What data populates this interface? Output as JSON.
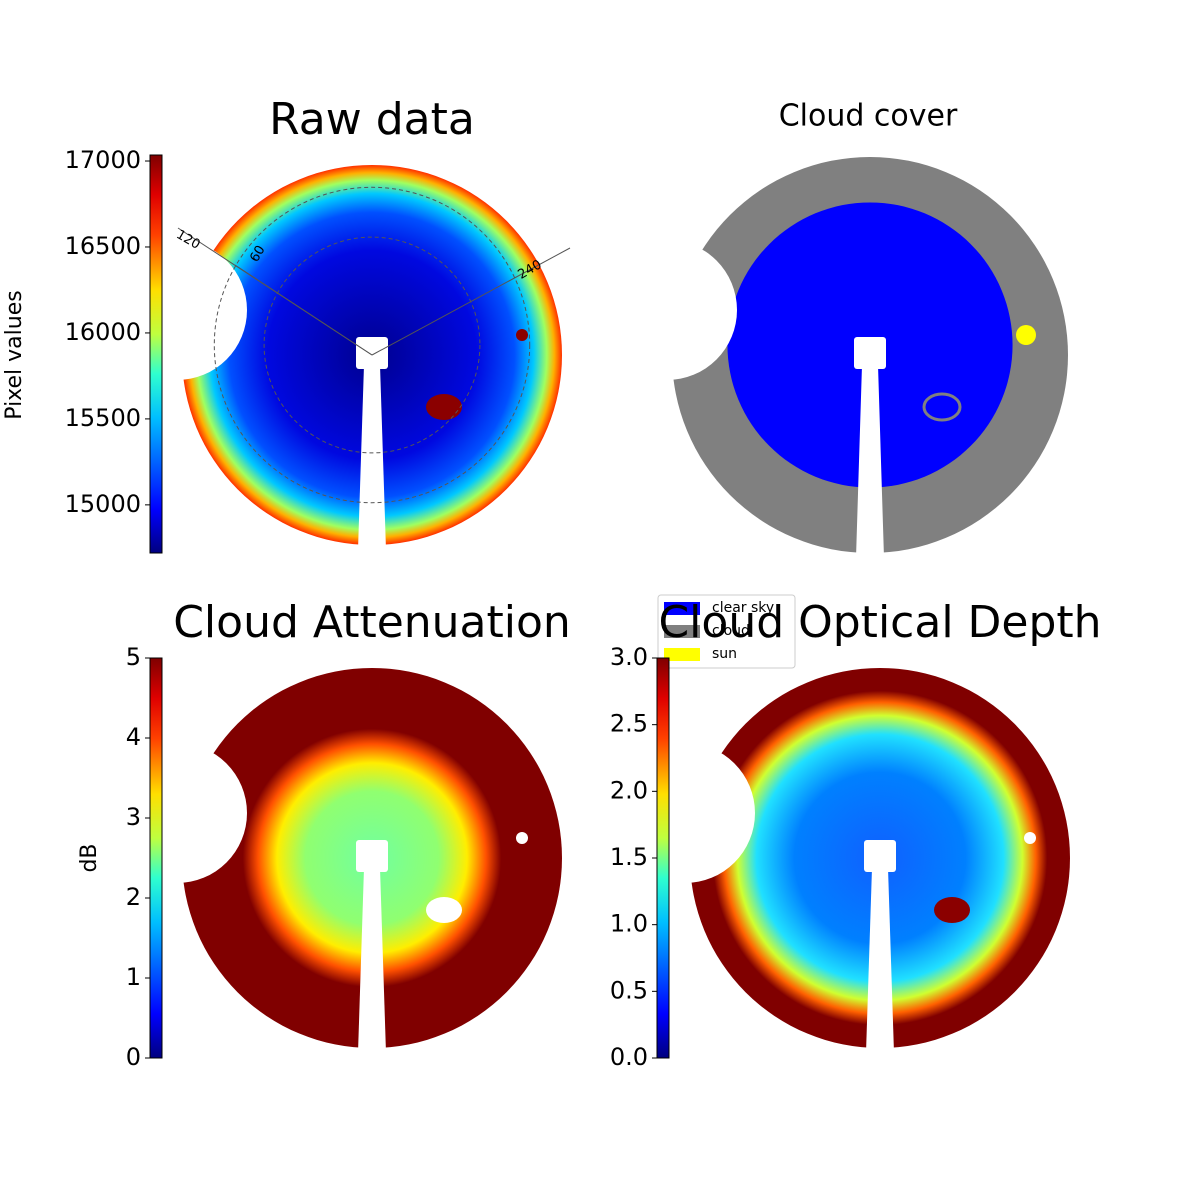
{
  "chart_data": [
    {
      "type": "image",
      "title": "Raw data",
      "colorbar_label": "Pixel values",
      "colormap": "jet",
      "ylim": [
        14720,
        17035
      ],
      "yticks": [
        15000,
        15500,
        16000,
        16500,
        17000
      ],
      "annotations": [
        "120",
        "60",
        "240"
      ]
    },
    {
      "type": "image",
      "title": "Cloud cover",
      "legend": [
        {
          "name": "clear sky",
          "color": "#0000ff"
        },
        {
          "name": "cloud",
          "color": "#808080"
        },
        {
          "name": "sun",
          "color": "#ffff00"
        }
      ]
    },
    {
      "type": "image",
      "title": "Cloud Attenuation",
      "colorbar_label": "dB",
      "colormap": "jet",
      "ylim": [
        0,
        5
      ],
      "yticks": [
        0,
        1,
        2,
        3,
        4,
        5
      ]
    },
    {
      "type": "image",
      "title": "Cloud Optical Depth",
      "colormap": "jet",
      "ylim": [
        0,
        3
      ],
      "yticks": [
        {
          "value": 0,
          "label": "0.0"
        },
        0.5,
        {
          "value": 1,
          "label": "1.0"
        },
        1.5,
        {
          "value": 2,
          "label": "2.0"
        },
        2.5,
        {
          "value": 3,
          "label": "3.0"
        }
      ]
    }
  ]
}
